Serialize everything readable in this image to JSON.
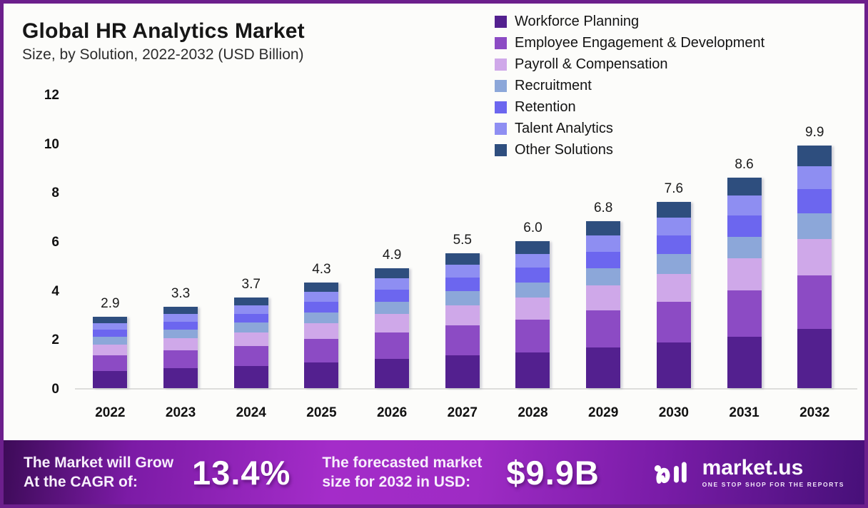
{
  "chart_data": {
    "type": "bar",
    "stacked": true,
    "title": "Global HR Analytics Market",
    "subtitle": "Size, by Solution, 2022-2032 (USD Billion)",
    "xlabel": "",
    "ylabel": "USD Billion",
    "ylim": [
      0,
      12
    ],
    "y_ticks": [
      0,
      2,
      4,
      6,
      8,
      10,
      12
    ],
    "grid": false,
    "legend_position": "top-right",
    "categories": [
      "2022",
      "2023",
      "2024",
      "2025",
      "2026",
      "2027",
      "2028",
      "2029",
      "2030",
      "2031",
      "2032"
    ],
    "totals": [
      "2.9",
      "3.3",
      "3.7",
      "4.3",
      "4.9",
      "5.5",
      "6.0",
      "6.8",
      "7.6",
      "8.6",
      "9.9"
    ],
    "series": [
      {
        "name": "Workforce Planning",
        "color": "#53208f",
        "values": [
          0.71,
          0.81,
          0.91,
          1.05,
          1.2,
          1.35,
          1.47,
          1.67,
          1.86,
          2.11,
          2.43
        ]
      },
      {
        "name": "Employee Engagement & Development",
        "color": "#8c4bc4",
        "values": [
          0.64,
          0.73,
          0.81,
          0.95,
          1.08,
          1.21,
          1.32,
          1.5,
          1.67,
          1.89,
          2.18
        ]
      },
      {
        "name": "Payroll & Compensation",
        "color": "#cfa8e9",
        "values": [
          0.44,
          0.5,
          0.56,
          0.65,
          0.74,
          0.83,
          0.9,
          1.02,
          1.14,
          1.29,
          1.49
        ]
      },
      {
        "name": "Recruitment",
        "color": "#8ca7d9",
        "values": [
          0.3,
          0.35,
          0.39,
          0.45,
          0.51,
          0.58,
          0.63,
          0.71,
          0.8,
          0.9,
          1.04
        ]
      },
      {
        "name": "Retention",
        "color": "#6c66ef",
        "values": [
          0.29,
          0.33,
          0.37,
          0.43,
          0.49,
          0.55,
          0.6,
          0.68,
          0.76,
          0.86,
          0.99
        ]
      },
      {
        "name": "Talent Analytics",
        "color": "#8e8ef2",
        "values": [
          0.28,
          0.31,
          0.35,
          0.41,
          0.47,
          0.52,
          0.57,
          0.65,
          0.72,
          0.82,
          0.94
        ]
      },
      {
        "name": "Other Solutions",
        "color": "#2e4e7e",
        "values": [
          0.25,
          0.28,
          0.31,
          0.37,
          0.42,
          0.47,
          0.51,
          0.58,
          0.65,
          0.73,
          0.84
        ]
      }
    ]
  },
  "banner": {
    "cagr_label_line1": "The Market will Grow",
    "cagr_label_line2": "At the CAGR of:",
    "cagr_value": "13.4%",
    "forecast_label_line1": "The forecasted market",
    "forecast_label_line2": "size for 2032 in USD:",
    "forecast_value": "$9.9B",
    "brand_name": "market.us",
    "brand_tagline": "ONE STOP SHOP FOR THE REPORTS"
  }
}
